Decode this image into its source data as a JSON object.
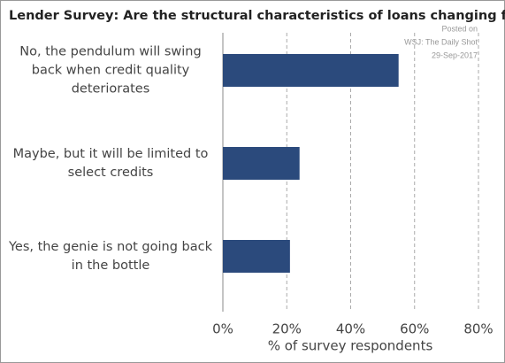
{
  "chart_data": {
    "type": "barh",
    "title": "Lender Survey: Are the structural characteristics of loans changing for good?",
    "source_lines": [
      "Posted on",
      "WSJ: The Daily Shot",
      "29-Sep-2017"
    ],
    "categories": [
      [
        "No, the pendulum will swing",
        "back when credit quality",
        "deteriorates"
      ],
      [
        "Maybe, but it will be limited to",
        "select credits"
      ],
      [
        "Yes, the genie is not going back",
        "in the bottle"
      ]
    ],
    "values": [
      55,
      24,
      21
    ],
    "color": "#2b4a7c",
    "xlabel": "% of survey respondents",
    "xlim": [
      0,
      80
    ],
    "xticks": [
      {
        "value": 0,
        "label": "0%"
      },
      {
        "value": 20,
        "label": "20%"
      },
      {
        "value": 40,
        "label": "40%"
      },
      {
        "value": 60,
        "label": "60%"
      },
      {
        "value": 80,
        "label": "80%"
      }
    ],
    "grid": true
  }
}
